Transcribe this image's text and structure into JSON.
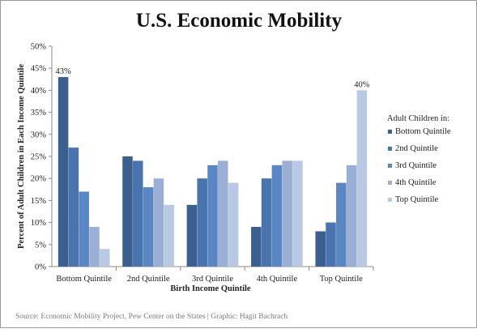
{
  "chart_data": {
    "type": "bar",
    "title": "U.S. Economic Mobility",
    "xlabel": "Birth Income Quintile",
    "ylabel": "Percent of Adult Children in Each Income Quintile",
    "categories": [
      "Bottom Quintile",
      "2nd Quintile",
      "3rd Quintile",
      "4th Quintile",
      "Top Quintile"
    ],
    "series": [
      {
        "name": "Bottom Quintile",
        "color": "#3b5f8e",
        "values": [
          43,
          25,
          14,
          9,
          8
        ]
      },
      {
        "name": "2nd Quintile",
        "color": "#4a74ae",
        "values": [
          27,
          24,
          20,
          20,
          10
        ]
      },
      {
        "name": "3rd Quintile",
        "color": "#5a87c4",
        "values": [
          17,
          18,
          23,
          23,
          19
        ]
      },
      {
        "name": "4th Quintile",
        "color": "#9aafd3",
        "values": [
          9,
          20,
          24,
          24,
          23
        ]
      },
      {
        "name": "Top Quintile",
        "color": "#b9c8e3",
        "values": [
          4,
          14,
          19,
          24,
          40
        ]
      }
    ],
    "ylim": [
      0,
      50
    ],
    "yticks": [
      0,
      5,
      10,
      15,
      20,
      25,
      30,
      35,
      40,
      45,
      50
    ],
    "ytick_labels": [
      "0%",
      "5%",
      "10%",
      "15%",
      "20%",
      "25%",
      "30%",
      "35%",
      "40%",
      "45%",
      "50%"
    ],
    "grid": false,
    "legend": {
      "title": "Adult Children in:",
      "position": "right"
    },
    "annotations": [
      {
        "series": 0,
        "category": 0,
        "text": "43%"
      },
      {
        "series": 4,
        "category": 4,
        "text": "40%"
      }
    ]
  },
  "source": "Source: Economic Mobility Project, Pew Center on the States | Graphic: Hagit Bachrach"
}
